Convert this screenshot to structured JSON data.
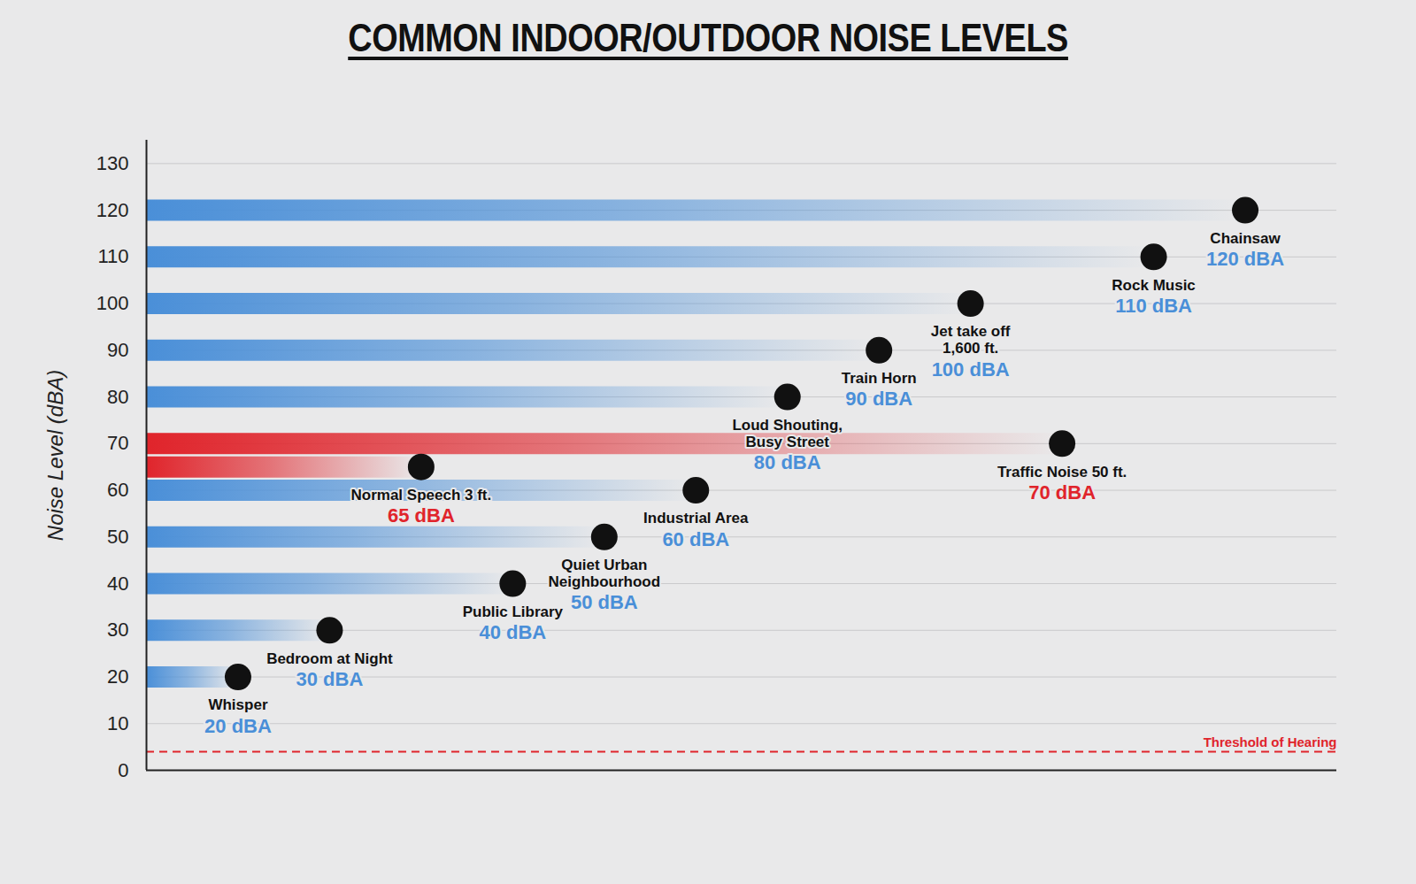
{
  "chart_data": {
    "type": "bar",
    "title": "COMMON INDOOR/OUTDOOR NOISE LEVELS",
    "ylabel": "Noise Level (dBA)",
    "categories": [
      "Whisper",
      "Bedroom at Night",
      "Normal Speech 3 ft.",
      "Public Library",
      "Quiet Urban Neighbourhood",
      "Industrial Area",
      "Loud Shouting, Busy Street",
      "Train Horn",
      "Jet take off 1,600 ft.",
      "Traffic Noise 50 ft.",
      "Rock Music",
      "Chainsaw"
    ],
    "values": [
      20,
      30,
      65,
      40,
      50,
      60,
      80,
      90,
      100,
      70,
      110,
      120
    ],
    "value_labels": [
      "20 dBA",
      "30 dBA",
      "65 dBA",
      "40 dBA",
      "50 dBA",
      "60 dBA",
      "80 dBA",
      "90 dBA",
      "100 dBA",
      "70 dBA",
      "110 dBA",
      "120 dBA"
    ],
    "colors": [
      "#4a8fd8",
      "#4a8fd8",
      "#e0242b",
      "#4a8fd8",
      "#4a8fd8",
      "#4a8fd8",
      "#4a8fd8",
      "#4a8fd8",
      "#4a8fd8",
      "#e0242b",
      "#4a8fd8",
      "#4a8fd8"
    ],
    "ylim": [
      0,
      135
    ],
    "yticks": [
      0,
      10,
      20,
      30,
      40,
      50,
      60,
      70,
      80,
      90,
      100,
      110,
      120,
      130
    ],
    "grid": true,
    "tick_labels": "y",
    "data_labels": true,
    "threshold": {
      "label": "Threshold of Hearing",
      "value": 4
    }
  }
}
